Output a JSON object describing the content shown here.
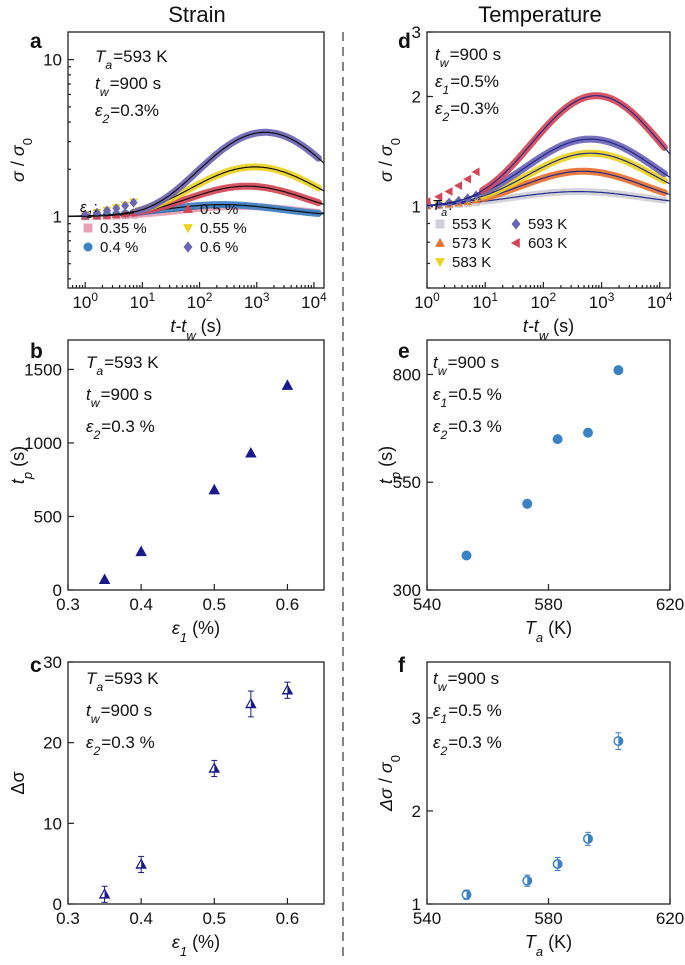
{
  "columns": {
    "left": "Strain",
    "right": "Temperature"
  },
  "colors": {
    "navy": "#1a1a8c",
    "steel_blue": "#3b82c4",
    "pink": "#e8a0b4",
    "red": "#d64555",
    "yellow": "#ecd21e",
    "purple": "#6c64b4",
    "gray": "#cfcfd6",
    "orange": "#e8702e"
  },
  "chart_data": [
    {
      "id": "a",
      "panel": "a",
      "type": "line",
      "xscale": "log",
      "yscale": "log",
      "xlim": [
        0.5,
        15000
      ],
      "ylim": [
        0.35,
        15
      ],
      "xlabel": {
        "base": "t-t",
        "sub": "w",
        "unit": " (s)"
      },
      "ylabel": {
        "num": "σ",
        "den": "σ",
        "den_sub": "0"
      },
      "xticks": [
        {
          "v": 1,
          "b": "10",
          "e": "0"
        },
        {
          "v": 10,
          "b": "10",
          "e": "1"
        },
        {
          "v": 100,
          "b": "10",
          "e": "2"
        },
        {
          "v": 1000,
          "b": "10",
          "e": "3"
        },
        {
          "v": 10000,
          "b": "10",
          "e": "4"
        }
      ],
      "yticks": [
        {
          "v": 1,
          "t": "1"
        },
        {
          "v": 10,
          "t": "10"
        }
      ],
      "annotations": [
        "T_a=593 K",
        "t_w=900 s",
        "ε_2=0.3%"
      ],
      "legend_title": "ε_1:",
      "model": "gauss",
      "series": [
        {
          "name": "0.35 %",
          "marker": "square",
          "color": "#e8a0b4",
          "pk": 0.16,
          "tp": 500,
          "w": 1.5
        },
        {
          "name": "0.4 %",
          "marker": "circle",
          "color": "#3b82c4",
          "pk": 0.19,
          "tp": 250,
          "w": 1.5
        },
        {
          "name": "0.5 %",
          "marker": "triangle-up",
          "color": "#d64555",
          "pk": 0.56,
          "tp": 680,
          "w": 1.4
        },
        {
          "name": "0.55 %",
          "marker": "triangle-down",
          "color": "#ecd21e",
          "pk": 1.07,
          "tp": 930,
          "w": 1.4
        },
        {
          "name": "0.6 %",
          "marker": "diamond",
          "color": "#6c64b4",
          "pk": 2.44,
          "tp": 1400,
          "w": 1.3
        }
      ]
    },
    {
      "id": "d",
      "panel": "d",
      "type": "line",
      "xscale": "log",
      "yscale": "log",
      "xlim": [
        1,
        15000
      ],
      "ylim": [
        0.6,
        3.0
      ],
      "xlabel": {
        "base": "t-t",
        "sub": "w",
        "unit": " (s)"
      },
      "ylabel": {
        "num": "σ",
        "den": "σ",
        "den_sub": "0"
      },
      "xticks": [
        {
          "v": 1,
          "b": "10",
          "e": "0"
        },
        {
          "v": 10,
          "b": "10",
          "e": "1"
        },
        {
          "v": 100,
          "b": "10",
          "e": "2"
        },
        {
          "v": 1000,
          "b": "10",
          "e": "3"
        },
        {
          "v": 10000,
          "b": "10",
          "e": "4"
        }
      ],
      "yticks": [
        {
          "v": 1,
          "t": "1"
        },
        {
          "v": 2,
          "t": "2"
        },
        {
          "v": 3,
          "t": "3"
        }
      ],
      "annotations": [
        "t_w=900 s",
        "ε_1=0.5%",
        "ε_2=0.3%"
      ],
      "legend_title": "T_a:",
      "model": "gauss",
      "series": [
        {
          "name": "553 K",
          "marker": "square",
          "color": "#cfcfd6",
          "pk": 0.1,
          "tp": 400,
          "w": 1.7
        },
        {
          "name": "573 K",
          "marker": "triangle-up",
          "color": "#e8702e",
          "pk": 0.25,
          "tp": 480,
          "w": 1.5
        },
        {
          "name": "583 K",
          "marker": "triangle-down",
          "color": "#ecd21e",
          "pk": 0.4,
          "tp": 650,
          "w": 1.5
        },
        {
          "name": "593 K",
          "marker": "diamond",
          "color": "#6c64b4",
          "pk": 0.53,
          "tp": 640,
          "w": 1.5
        },
        {
          "name": "603 K",
          "marker": "triangle-left",
          "color": "#d64555",
          "pk": 1.01,
          "tp": 810,
          "w": 1.4
        }
      ]
    },
    {
      "id": "b",
      "panel": "b",
      "type": "scatter",
      "xlim": [
        0.3,
        0.65
      ],
      "ylim": [
        0,
        1700
      ],
      "xlabel": {
        "base": "ε",
        "sub": "1",
        "unit": " (%)"
      },
      "ylabel": {
        "base": "t",
        "sub": "p",
        "unit": " (s)"
      },
      "xticks": [
        {
          "v": 0.3,
          "t": "0.3"
        },
        {
          "v": 0.4,
          "t": "0.4"
        },
        {
          "v": 0.5,
          "t": "0.5"
        },
        {
          "v": 0.6,
          "t": "0.6"
        }
      ],
      "yticks": [
        {
          "v": 0,
          "t": "0"
        },
        {
          "v": 500,
          "t": "500"
        },
        {
          "v": 1000,
          "t": "1000"
        },
        {
          "v": 1500,
          "t": "1500"
        }
      ],
      "annotations": [
        "T_a=593 K",
        "t_w=900 s",
        "ε_2=0.3 %"
      ],
      "marker": "triangle-up",
      "color": "#1a1a8c",
      "x": [
        0.35,
        0.4,
        0.5,
        0.55,
        0.6
      ],
      "y": [
        70,
        260,
        680,
        930,
        1390
      ]
    },
    {
      "id": "e",
      "panel": "e",
      "type": "scatter",
      "xlim": [
        540,
        620
      ],
      "ylim": [
        300,
        880
      ],
      "xlabel": {
        "base": "T",
        "sub": "a",
        "unit": " (K)"
      },
      "ylabel": {
        "base": "t",
        "sub": "p",
        "unit": " (s)"
      },
      "xticks": [
        {
          "v": 540,
          "t": "540"
        },
        {
          "v": 580,
          "t": "580"
        },
        {
          "v": 620,
          "t": "620"
        }
      ],
      "yticks": [
        {
          "v": 300,
          "t": "300"
        },
        {
          "v": 550,
          "t": "550"
        },
        {
          "v": 800,
          "t": "800"
        }
      ],
      "annotations": [
        "t_w=900 s",
        "ε_1=0.5 %",
        "ε_2=0.3 %"
      ],
      "marker": "circle",
      "color": "#3b82c4",
      "x": [
        553,
        573,
        583,
        593,
        603
      ],
      "y": [
        380,
        500,
        650,
        665,
        810
      ]
    },
    {
      "id": "c",
      "panel": "c",
      "type": "scatter",
      "xlim": [
        0.3,
        0.65
      ],
      "ylim": [
        0,
        30
      ],
      "xlabel": {
        "base": "ε",
        "sub": "1",
        "unit": " (%)"
      },
      "ylabel": {
        "base": "Δσ",
        "sub": "",
        "unit": ""
      },
      "xticks": [
        {
          "v": 0.3,
          "t": "0.3"
        },
        {
          "v": 0.4,
          "t": "0.4"
        },
        {
          "v": 0.5,
          "t": "0.5"
        },
        {
          "v": 0.6,
          "t": "0.6"
        }
      ],
      "yticks": [
        {
          "v": 0,
          "t": "0"
        },
        {
          "v": 10,
          "t": "10"
        },
        {
          "v": 20,
          "t": "20"
        },
        {
          "v": 30,
          "t": "30"
        }
      ],
      "annotations": [
        "T_a=593 K",
        "t_w=900 s",
        "ε_2=0.3 %"
      ],
      "marker": "triangle-up",
      "color": "#1a1a8c",
      "half_filled": true,
      "x": [
        0.35,
        0.4,
        0.5,
        0.55,
        0.6
      ],
      "y": [
        1.2,
        4.9,
        16.8,
        24.8,
        26.5
      ],
      "err": [
        1.0,
        1.0,
        1.0,
        1.6,
        1.0
      ]
    },
    {
      "id": "f",
      "panel": "f",
      "type": "scatter",
      "xlim": [
        540,
        620
      ],
      "ylim": [
        1,
        3.6
      ],
      "xlabel": {
        "base": "T",
        "sub": "a",
        "unit": " (K)"
      },
      "ylabel": {
        "num": "Δσ",
        "den": "σ",
        "den_sub": "0"
      },
      "xticks": [
        {
          "v": 540,
          "t": "540"
        },
        {
          "v": 580,
          "t": "580"
        },
        {
          "v": 620,
          "t": "620"
        }
      ],
      "yticks": [
        {
          "v": 1,
          "t": "1"
        },
        {
          "v": 2,
          "t": "2"
        },
        {
          "v": 3,
          "t": "3"
        }
      ],
      "annotations": [
        "t_w=900 s",
        "ε_1=0.5 %",
        "ε_2=0.3 %"
      ],
      "marker": "circle",
      "color": "#3b82c4",
      "half_filled": true,
      "x": [
        553,
        573,
        583,
        593,
        603
      ],
      "y": [
        1.1,
        1.25,
        1.43,
        1.7,
        2.75
      ],
      "err": [
        0.05,
        0.06,
        0.07,
        0.07,
        0.09
      ]
    }
  ]
}
